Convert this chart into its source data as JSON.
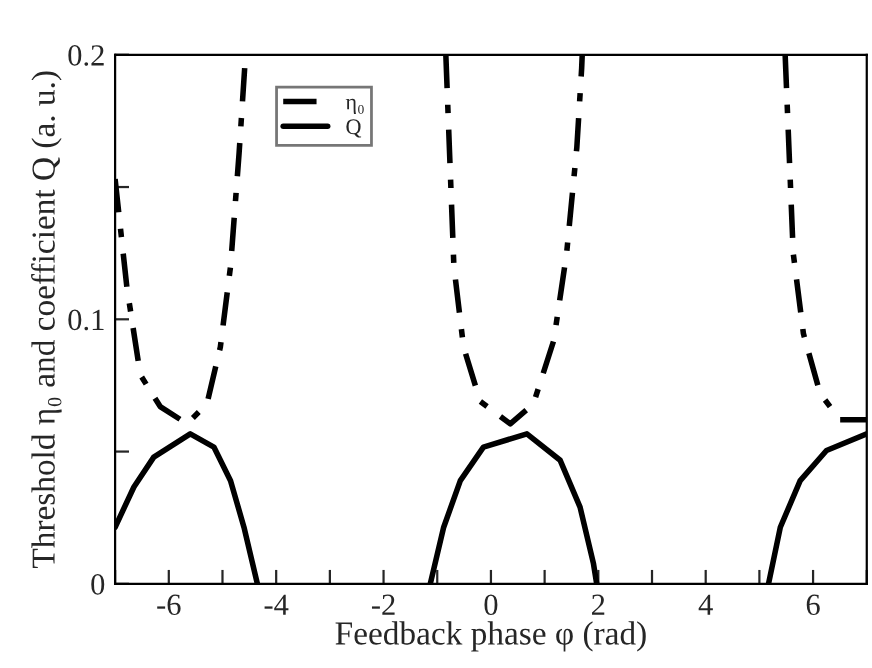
{
  "chart_data": {
    "type": "line",
    "xlabel": "Feedback phase φ (rad)",
    "ylabel": "Threshold η₀ and coefficient Q (a. u.)",
    "xlim": [
      -7,
      7
    ],
    "ylim": [
      0,
      0.2
    ],
    "xticks": [
      {
        "value": -7,
        "label": null
      },
      -6,
      {
        "value": -5,
        "label": null
      },
      -4,
      {
        "value": -3,
        "label": null
      },
      -2,
      {
        "value": -1,
        "label": null
      },
      0,
      {
        "value": 1,
        "label": null
      },
      2,
      {
        "value": 3,
        "label": null
      },
      4,
      {
        "value": 5,
        "label": null
      },
      6,
      {
        "value": 7,
        "label": null
      }
    ],
    "yticks": [
      0,
      {
        "value": 0.05,
        "label": null
      },
      0.1,
      {
        "value": 0.15,
        "label": null
      },
      0.2
    ],
    "grid": false,
    "legend": "top left",
    "series": [
      {
        "name": "η₀",
        "color": "#000000",
        "line_style": "dashdot",
        "x": [
          -7,
          -6.78,
          -6.53,
          -6.16,
          -5.66,
          -5.29,
          -5.04,
          -4.85,
          -4.69,
          -4.58,
          -4.57,
          -4.2,
          -0.84,
          -0.69,
          -0.51,
          -0.2,
          0.36,
          0.79,
          1.17,
          1.41,
          1.6,
          1.69,
          1.7,
          3,
          5.48,
          5.63,
          5.82,
          6.13,
          6.5,
          7
        ],
        "values": [
          0.153,
          0.112,
          0.079,
          0.067,
          0.0605,
          0.068,
          0.0895,
          0.12,
          0.163,
          0.197,
          0.2,
          null,
          0.2,
          0.12,
          0.0895,
          0.069,
          0.0605,
          0.068,
          0.092,
          0.125,
          0.165,
          0.195,
          0.2,
          null,
          0.2,
          0.125,
          0.0946,
          0.072,
          0.062,
          0.062
        ]
      },
      {
        "name": "Q",
        "color": "#000000",
        "line_style": "solid",
        "x": [
          -7,
          -6.65,
          -6.28,
          -5.6,
          -5.16,
          -4.85,
          -4.6,
          -4.35,
          -3,
          -1.13,
          -0.88,
          -0.57,
          -0.14,
          0.67,
          1.29,
          1.66,
          1.91,
          1.97,
          3.5,
          5.17,
          5.39,
          5.76,
          6.25,
          7
        ],
        "values": [
          0.0214,
          0.0366,
          0.0479,
          0.0567,
          0.0517,
          0.039,
          0.0214,
          0,
          null,
          0,
          0.0214,
          0.039,
          0.0517,
          0.0567,
          0.0467,
          0.029,
          0.0076,
          0,
          null,
          0,
          0.0214,
          0.039,
          0.0504,
          0.0567
        ]
      }
    ]
  }
}
